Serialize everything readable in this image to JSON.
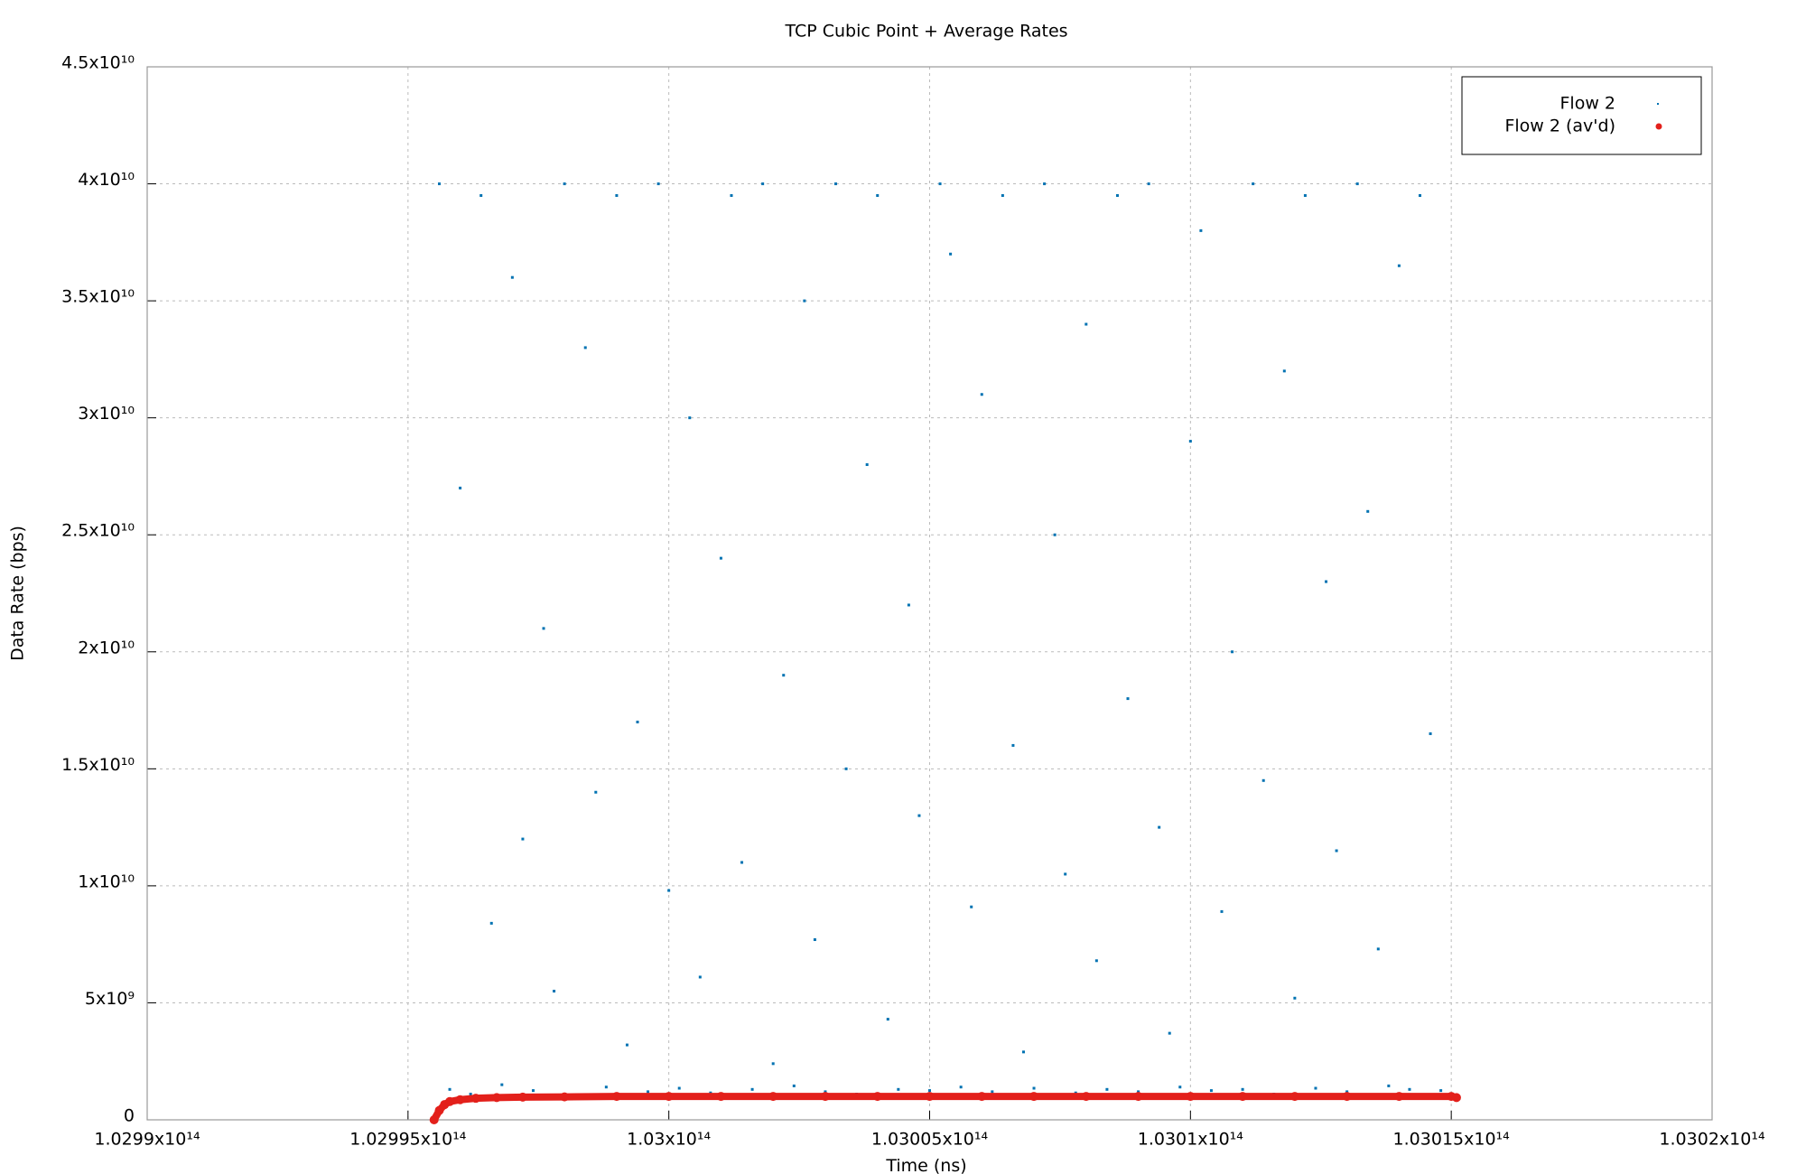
{
  "chart_data": {
    "type": "scatter",
    "title": "TCP Cubic Point + Average Rates",
    "x_label": "Time (ns)",
    "y_label": "Data Rate (bps)",
    "xlim": [
      102990000000000.0,
      103020000000000.0
    ],
    "ylim": [
      0,
      45000000000.0
    ],
    "xticks": [
      {
        "value": 102990000000000.0,
        "label": "1.0299x10¹⁴"
      },
      {
        "value": 102995000000000.0,
        "label": "1.02995x10¹⁴"
      },
      {
        "value": 103000000000000.0,
        "label": "1.03x10¹⁴"
      },
      {
        "value": 103005000000000.0,
        "label": "1.03005x10¹⁴"
      },
      {
        "value": 103010000000000.0,
        "label": "1.0301x10¹⁴"
      },
      {
        "value": 103015000000000.0,
        "label": "1.03015x10¹⁴"
      },
      {
        "value": 103020000000000.0,
        "label": "1.0302x10¹⁴"
      }
    ],
    "yticks": [
      0,
      {
        "value": 5000000000.0,
        "label": "5x10⁹"
      },
      {
        "value": 10000000000.0,
        "label": "1x10¹⁰"
      },
      {
        "value": 15000000000.0,
        "label": "1.5x10¹⁰"
      },
      {
        "value": 20000000000.0,
        "label": "2x10¹⁰"
      },
      {
        "value": 25000000000.0,
        "label": "2.5x10¹⁰"
      },
      {
        "value": 30000000000.0,
        "label": "3x10¹⁰"
      },
      {
        "value": 35000000000.0,
        "label": "3.5x10¹⁰"
      },
      {
        "value": 40000000000.0,
        "label": "4x10¹⁰"
      },
      {
        "value": 45000000000.0,
        "label": "4.5x10¹⁰"
      }
    ],
    "grid": true,
    "legend": "top-right",
    "series": [
      {
        "name": "Flow 2",
        "color": "#0072b2",
        "x": [
          102995600000000.0,
          102995800000000.0,
          102996000000000.0,
          102996200000000.0,
          102996400000000.0,
          102996600000000.0,
          102996800000000.0,
          102997000000000.0,
          102997200000000.0,
          102997400000000.0,
          102997600000000.0,
          102997800000000.0,
          102998000000000.0,
          102998200000000.0,
          102998400000000.0,
          102998600000000.0,
          102998800000000.0,
          102999000000000.0,
          102999200000000.0,
          102999400000000.0,
          102999600000000.0,
          102999800000000.0,
          103000000000000.0,
          103000200000000.0,
          103000400000000.0,
          103000600000000.0,
          103000800000000.0,
          103001000000000.0,
          103001200000000.0,
          103001400000000.0,
          103001600000000.0,
          103001800000000.0,
          103002000000000.0,
          103002200000000.0,
          103002400000000.0,
          103002600000000.0,
          103002800000000.0,
          103003000000000.0,
          103003200000000.0,
          103003400000000.0,
          103003600000000.0,
          103003800000000.0,
          103004000000000.0,
          103004200000000.0,
          103004400000000.0,
          103004600000000.0,
          103004800000000.0,
          103005000000000.0,
          103005200000000.0,
          103005400000000.0,
          103005600000000.0,
          103005800000000.0,
          103006000000000.0,
          103006200000000.0,
          103006400000000.0,
          103006600000000.0,
          103006800000000.0,
          103007000000000.0,
          103007200000000.0,
          103007400000000.0,
          103007600000000.0,
          103007800000000.0,
          103008000000000.0,
          103008200000000.0,
          103008400000000.0,
          103008600000000.0,
          103008800000000.0,
          103009000000000.0,
          103009200000000.0,
          103009400000000.0,
          103009600000000.0,
          103009800000000.0,
          103010000000000.0,
          103010200000000.0,
          103010400000000.0,
          103010600000000.0,
          103010800000000.0,
          103011000000000.0,
          103011200000000.0,
          103011400000000.0,
          103011600000000.0,
          103011800000000.0,
          103012000000000.0,
          103012200000000.0,
          103012400000000.0,
          103012600000000.0,
          103012800000000.0,
          103013000000000.0,
          103013200000000.0,
          103013400000000.0,
          103013600000000.0,
          103013800000000.0,
          103014000000000.0,
          103014200000000.0,
          103014400000000.0,
          103014600000000.0,
          103014800000000.0
        ],
        "values": [
          40000000000.0,
          1300000000.0,
          27000000000.0,
          1100000000.0,
          39500000000.0,
          8400000000.0,
          1500000000.0,
          36000000000.0,
          12000000000.0,
          1250000000.0,
          21000000000.0,
          5500000000.0,
          40000000000.0,
          900000000.0,
          33000000000.0,
          14000000000.0,
          1400000000.0,
          39500000000.0,
          3200000000.0,
          17000000000.0,
          1200000000.0,
          40000000000.0,
          9800000000.0,
          1350000000.0,
          30000000000.0,
          6100000000.0,
          1150000000.0,
          24000000000.0,
          39500000000.0,
          11000000000.0,
          1300000000.0,
          40000000000.0,
          2400000000.0,
          19000000000.0,
          1450000000.0,
          35000000000.0,
          7700000000.0,
          1200000000.0,
          40000000000.0,
          15000000000.0,
          1100000000.0,
          28000000000.0,
          39500000000.0,
          4300000000.0,
          1300000000.0,
          22000000000.0,
          13000000000.0,
          1250000000.0,
          40000000000.0,
          37000000000.0,
          1400000000.0,
          9100000000.0,
          31000000000.0,
          1200000000.0,
          39500000000.0,
          16000000000.0,
          2900000000.0,
          1350000000.0,
          40000000000.0,
          25000000000.0,
          10500000000.0,
          1150000000.0,
          34000000000.0,
          6800000000.0,
          1300000000.0,
          39500000000.0,
          18000000000.0,
          1200000000.0,
          40000000000.0,
          12500000000.0,
          3700000000.0,
          1400000000.0,
          29000000000.0,
          38000000000.0,
          1250000000.0,
          8900000000.0,
          20000000000.0,
          1300000000.0,
          40000000000.0,
          14500000000.0,
          1100000000.0,
          32000000000.0,
          5200000000.0,
          39500000000.0,
          1350000000.0,
          23000000000.0,
          11500000000.0,
          1200000000.0,
          40000000000.0,
          26000000000.0,
          7300000000.0,
          1450000000.0,
          36500000000.0,
          1300000000.0,
          39500000000.0,
          16500000000.0,
          1250000000.0
        ]
      },
      {
        "name": "Flow 2 (av'd)",
        "color": "#e3201b",
        "x": [
          102995500000000.0,
          102995600000000.0,
          102995700000000.0,
          102995800000000.0,
          102996000000000.0,
          102996300000000.0,
          102996700000000.0,
          102997200000000.0,
          102998000000000.0,
          102999000000000.0,
          103000000000000.0,
          103001000000000.0,
          103002000000000.0,
          103003000000000.0,
          103004000000000.0,
          103005000000000.0,
          103006000000000.0,
          103007000000000.0,
          103008000000000.0,
          103009000000000.0,
          103010000000000.0,
          103011000000000.0,
          103012000000000.0,
          103013000000000.0,
          103014000000000.0,
          103015000000000.0,
          103015100000000.0
        ],
        "values": [
          0,
          400000000.0,
          650000000.0,
          780000000.0,
          860000000.0,
          920000000.0,
          950000000.0,
          970000000.0,
          980000000.0,
          1000000000.0,
          1000000000.0,
          1000000000.0,
          1000000000.0,
          1000000000.0,
          1000000000.0,
          1000000000.0,
          1000000000.0,
          1000000000.0,
          1000000000.0,
          1000000000.0,
          1000000000.0,
          1000000000.0,
          1000000000.0,
          1000000000.0,
          1000000000.0,
          1000000000.0,
          950000000.0
        ]
      }
    ]
  }
}
